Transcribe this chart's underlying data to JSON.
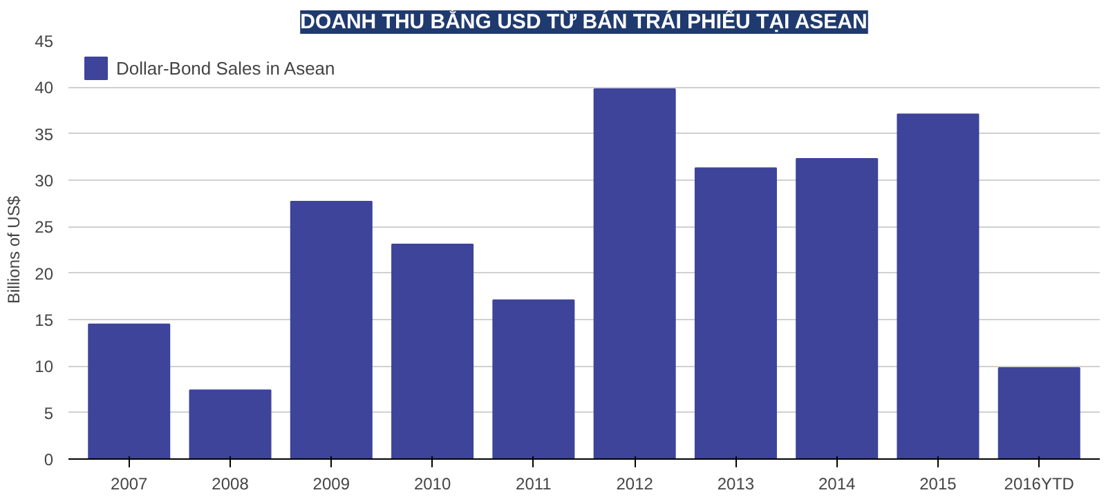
{
  "chart_data": {
    "type": "bar",
    "title": "DOANH THU BẰNG USD TỪ BÁN TRÁI PHIẾU TẠI ASEAN",
    "ylabel": "Billions of US$",
    "categories": [
      "2007",
      "2008",
      "2009",
      "2010",
      "2011",
      "2012",
      "2013",
      "2014",
      "2015",
      "2016YTD"
    ],
    "series": [
      {
        "name": "Dollar-Bond Sales in Asean",
        "color": "#3d4499",
        "values": [
          14.5,
          7.4,
          27.7,
          23.1,
          17.1,
          39.8,
          31.3,
          32.3,
          37.1,
          9.8
        ]
      }
    ],
    "ylim": [
      0,
      45
    ],
    "yticks": [
      0,
      5,
      10,
      15,
      20,
      25,
      30,
      35,
      40,
      45
    ],
    "grid": "y",
    "legend": "top left"
  }
}
